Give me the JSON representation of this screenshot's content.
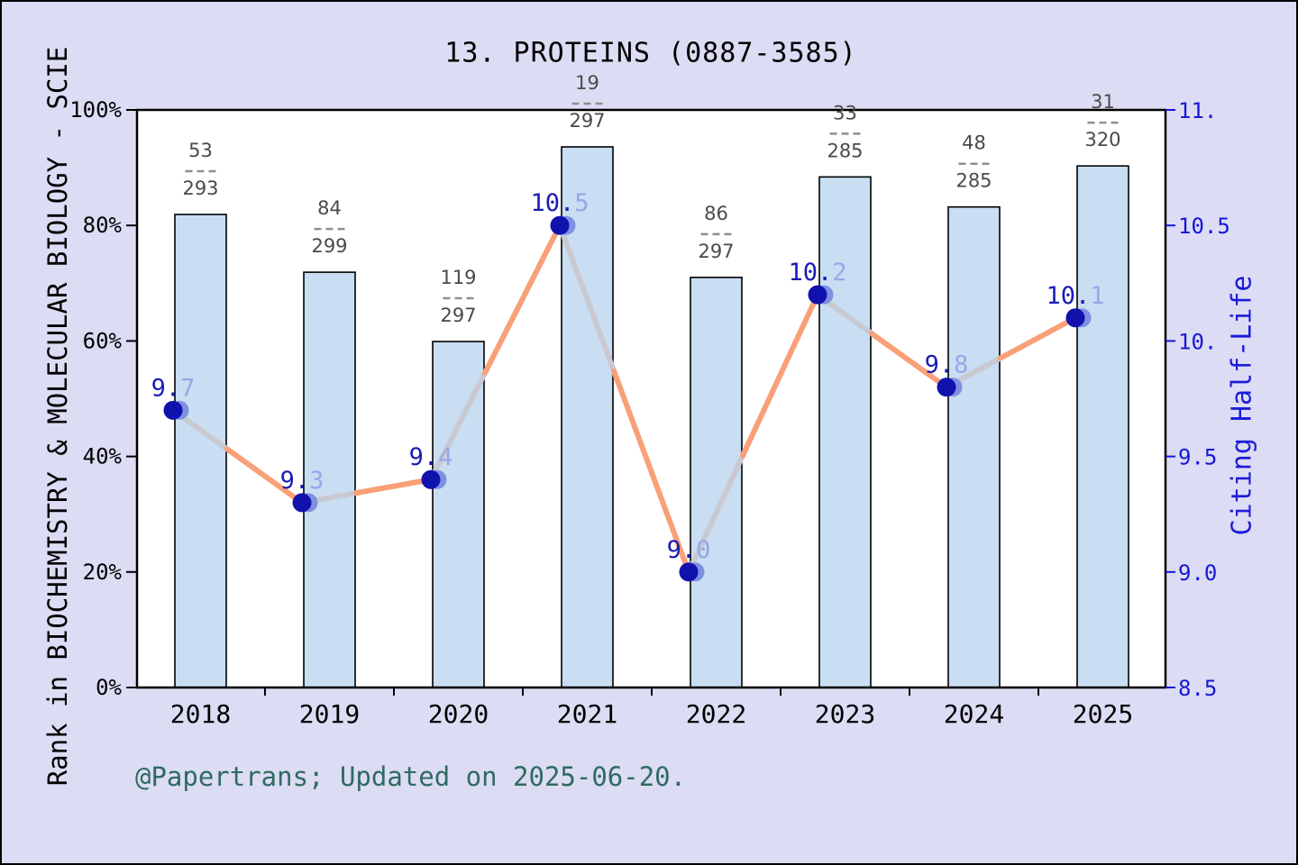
{
  "title": "13. PROTEINS (0887-3585)",
  "footer": "@Papertrans; Updated on 2025-06-20.",
  "chart_data": {
    "type": "combo",
    "subtype": "bars-with-line-overlay",
    "title": "13. PROTEINS (0887-3585)",
    "categories": [
      "2018",
      "2019",
      "2020",
      "2021",
      "2022",
      "2023",
      "2024",
      "2025"
    ],
    "bar_series": {
      "name": "Rank in BIOCHEMISTRY & MOLECULAR BIOLOGY - SCIE",
      "fraction_labels": [
        {
          "numerator": "53",
          "denominator": "293"
        },
        {
          "numerator": "84",
          "denominator": "299"
        },
        {
          "numerator": "119",
          "denominator": "297"
        },
        {
          "numerator": "19",
          "denominator": "297"
        },
        {
          "numerator": "86",
          "denominator": "297"
        },
        {
          "numerator": "33",
          "denominator": "285"
        },
        {
          "numerator": "48",
          "denominator": "285"
        },
        {
          "numerator": "31",
          "denominator": "320"
        }
      ],
      "percentile_values": [
        0.819,
        0.719,
        0.599,
        0.936,
        0.71,
        0.884,
        0.832,
        0.903
      ]
    },
    "line_series": {
      "name": "Citing Half-Life",
      "values": [
        9.7,
        9.3,
        9.4,
        10.5,
        9.0,
        10.2,
        9.8,
        10.1
      ],
      "point_labels": [
        "9.7",
        "9.3",
        "9.4",
        "10.5",
        "9.0",
        "10.2",
        "9.8",
        "10.1"
      ]
    },
    "left_axis": {
      "label": "Rank in BIOCHEMISTRY & MOLECULAR BIOLOGY - SCIE",
      "ticks": [
        "0%",
        "20%",
        "40%",
        "60%",
        "80%",
        "100%"
      ],
      "tick_values": [
        0,
        0.2,
        0.4,
        0.6,
        0.8,
        1.0
      ],
      "range": [
        0,
        1
      ]
    },
    "right_axis": {
      "label": "Citing Half-Life",
      "ticks": [
        "8.5",
        "9.0",
        "9.5",
        "10.",
        "10.5",
        "11."
      ],
      "tick_values": [
        8.5,
        9.0,
        9.5,
        10.0,
        10.5,
        11.0
      ],
      "range": [
        8.5,
        11.0
      ]
    },
    "grid": false,
    "legend": "none"
  },
  "colors": {
    "background": "#dcdcf4",
    "plot_background": "#ffffff",
    "bar_fill": "#c9def3",
    "bar_stroke": "#000000",
    "line_orange": "#f9a078",
    "line_gray": "#c9c9d1",
    "marker_navy": "#1111ad",
    "marker_light": "#7e90e0",
    "value_label_navy": "#1b1bb5",
    "value_label_light": "#97a7e8",
    "right_axis_blue": "#1717d6",
    "fraction_text": "#4a4a4a",
    "fraction_dash": "#8f8f8f",
    "footer_teal": "#2f6b60",
    "axis_black": "#000000"
  }
}
